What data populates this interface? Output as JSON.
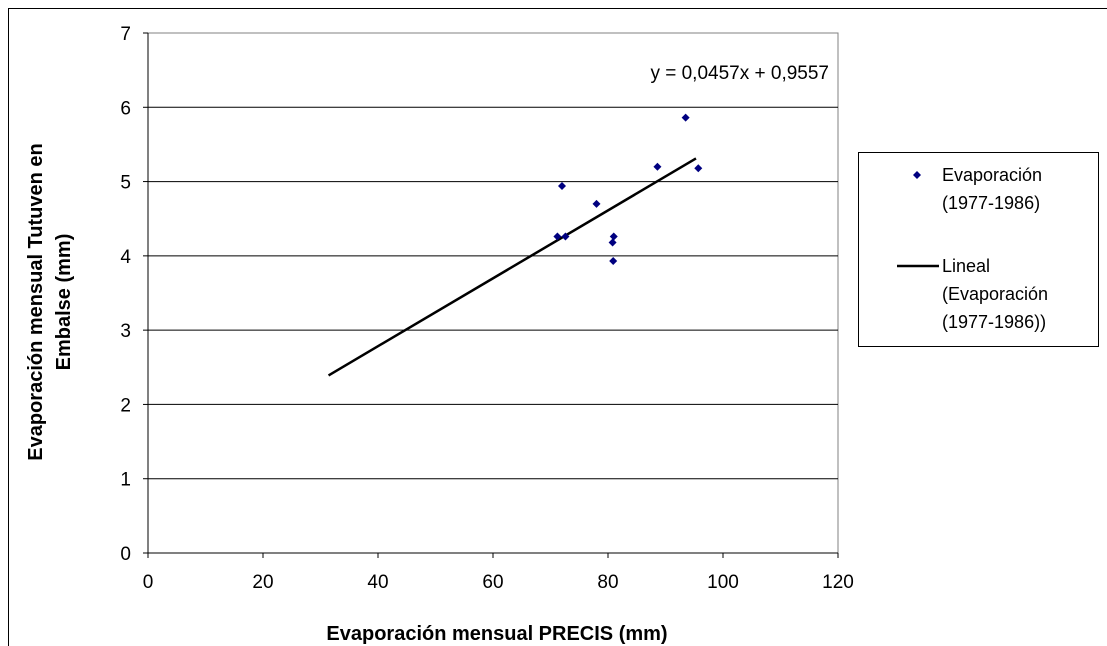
{
  "chart_data": {
    "type": "scatter",
    "title": "",
    "xlabel": "Evaporación mensual PRECIS (mm)",
    "ylabel_lines": [
      "Evaporación mensual Tutuven en",
      "Embalse  (mm)"
    ],
    "xlim": [
      0,
      120
    ],
    "ylim": [
      0,
      7
    ],
    "x_ticks": [
      "0",
      "20",
      "40",
      "60",
      "80",
      "100",
      "120"
    ],
    "y_ticks": [
      "0",
      "1",
      "2",
      "3",
      "4",
      "5",
      "6",
      "7"
    ],
    "grid": "horizontal",
    "legend_position": "right",
    "series": [
      {
        "name_lines": [
          "Evaporación",
          "(1977-1986)"
        ],
        "marker": "diamond",
        "color": "#000080",
        "points": [
          {
            "x": 71.2,
            "y": 4.26
          },
          {
            "x": 72.0,
            "y": 4.94
          },
          {
            "x": 72.6,
            "y": 4.26
          },
          {
            "x": 78.0,
            "y": 4.7
          },
          {
            "x": 80.8,
            "y": 4.18
          },
          {
            "x": 81.0,
            "y": 4.26
          },
          {
            "x": 80.9,
            "y": 3.93
          },
          {
            "x": 88.6,
            "y": 5.2
          },
          {
            "x": 93.5,
            "y": 5.86
          },
          {
            "x": 95.7,
            "y": 5.18
          }
        ]
      }
    ],
    "trendline": {
      "name_lines": [
        "Lineal",
        "(Evaporación",
        "(1977-1986))"
      ],
      "type": "linear",
      "slope": 0.0457,
      "intercept": 0.9557,
      "x_range": [
        31.4,
        95.3
      ],
      "equation": "y = 0,0457x + 0,9557",
      "color": "#000000"
    }
  }
}
